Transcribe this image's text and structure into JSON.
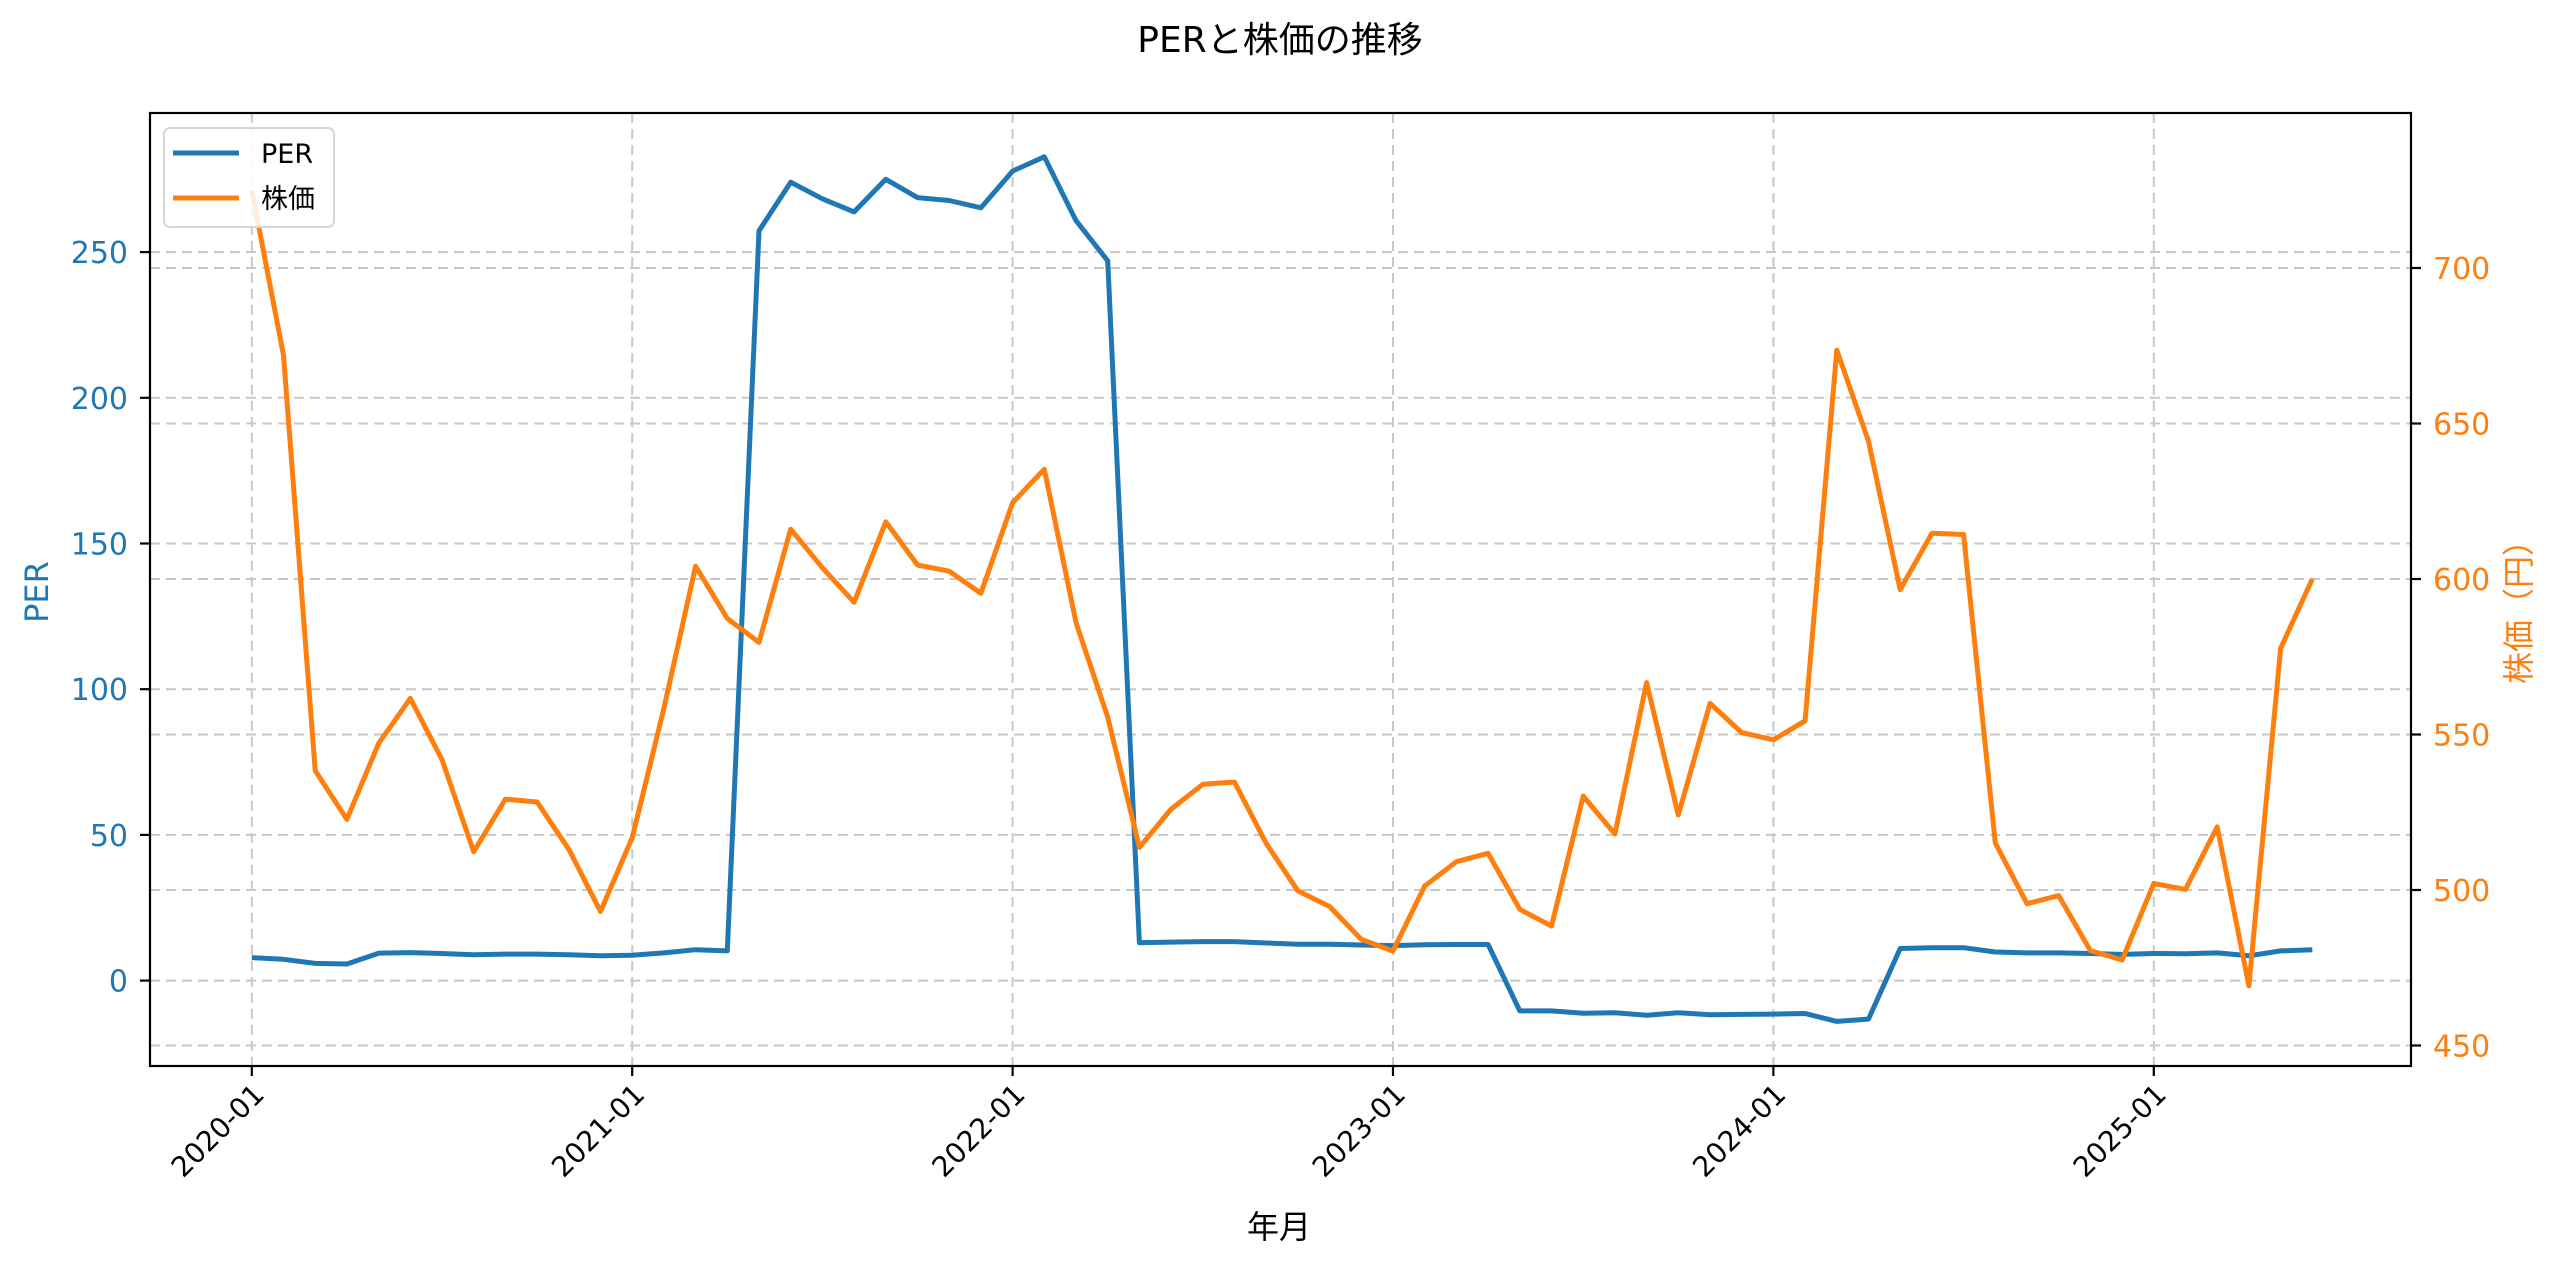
{
  "chart_data": {
    "type": "line",
    "title": "PERと株価の推移",
    "xlabel": "年月",
    "ylabel_left": "PER",
    "ylabel_right": "株価（円）",
    "x_tick_labels": [
      "2020-01",
      "2021-01",
      "2022-01",
      "2023-01",
      "2024-01",
      "2025-01"
    ],
    "y_left_ticks": [
      0,
      50,
      100,
      150,
      200,
      250
    ],
    "y_right_ticks": [
      450,
      500,
      550,
      600,
      650,
      700
    ],
    "ylim_left": [
      -29.2,
      297.8
    ],
    "ylim_right": [
      444.5,
      750.9
    ],
    "grid": true,
    "legend_position": "upper left",
    "x": [
      "2020-01",
      "2020-02",
      "2020-03",
      "2020-04",
      "2020-05",
      "2020-06",
      "2020-07",
      "2020-08",
      "2020-09",
      "2020-10",
      "2020-11",
      "2020-12",
      "2021-01",
      "2021-02",
      "2021-03",
      "2021-04",
      "2021-05",
      "2021-06",
      "2021-07",
      "2021-08",
      "2021-09",
      "2021-10",
      "2021-11",
      "2021-12",
      "2022-01",
      "2022-02",
      "2022-03",
      "2022-04",
      "2022-05",
      "2022-06",
      "2022-07",
      "2022-08",
      "2022-09",
      "2022-10",
      "2022-11",
      "2022-12",
      "2023-01",
      "2023-02",
      "2023-03",
      "2023-04",
      "2023-05",
      "2023-06",
      "2023-07",
      "2023-08",
      "2023-09",
      "2023-10",
      "2023-11",
      "2023-12",
      "2024-01",
      "2024-02",
      "2024-03",
      "2024-04",
      "2024-05",
      "2024-06",
      "2024-07",
      "2024-08",
      "2024-09",
      "2024-10",
      "2024-11",
      "2024-12",
      "2025-01",
      "2025-02",
      "2025-03",
      "2025-04",
      "2025-05",
      "2025-06"
    ],
    "series": [
      {
        "name": "PER",
        "axis": "left",
        "color": "#1f77b4",
        "values": [
          7.9,
          7.3,
          5.9,
          5.7,
          9.4,
          9.6,
          9.3,
          8.9,
          9.1,
          9.1,
          8.9,
          8.5,
          8.7,
          9.5,
          10.6,
          10.2,
          257.3,
          274.0,
          268.3,
          263.8,
          275.0,
          268.7,
          267.7,
          265.2,
          277.8,
          282.7,
          260.8,
          247.0,
          13.0,
          13.2,
          13.4,
          13.4,
          12.9,
          12.5,
          12.5,
          12.2,
          12.0,
          12.3,
          12.4,
          12.4,
          -10.4,
          -10.4,
          -11.2,
          -11.0,
          -11.9,
          -11.0,
          -11.7,
          -11.6,
          -11.5,
          -11.3,
          -14.0,
          -13.2,
          11.0,
          11.3,
          11.3,
          9.8,
          9.5,
          9.5,
          9.3,
          9.0,
          9.3,
          9.2,
          9.5,
          8.5,
          10.2,
          10.6
        ]
      },
      {
        "name": "株価",
        "axis": "right",
        "color": "#ff7f0e",
        "values": [
          724.9,
          672.0,
          538.4,
          522.7,
          547.1,
          561.6,
          541.9,
          512.3,
          529.2,
          528.3,
          513.1,
          493.1,
          516.8,
          558.4,
          604.1,
          587.3,
          579.6,
          616.0,
          603.6,
          592.5,
          618.4,
          604.5,
          602.5,
          595.4,
          624.5,
          635.3,
          586.0,
          555.6,
          513.7,
          526.0,
          534.0,
          534.7,
          515.0,
          499.7,
          494.7,
          484.1,
          480.4,
          501.3,
          509.1,
          511.8,
          493.8,
          488.4,
          530.2,
          518.0,
          566.7,
          524.1,
          560.0,
          550.6,
          548.3,
          554.4,
          673.6,
          644.3,
          596.6,
          614.7,
          614.3,
          515.1,
          495.6,
          498.2,
          480.5,
          477.5,
          502.1,
          500.2,
          520.3,
          469.2,
          577.7,
          600.0
        ]
      }
    ]
  },
  "legend": {
    "items": [
      {
        "label": "PER",
        "color": "#1f77b4"
      },
      {
        "label": "株価",
        "color": "#ff7f0e"
      }
    ]
  }
}
